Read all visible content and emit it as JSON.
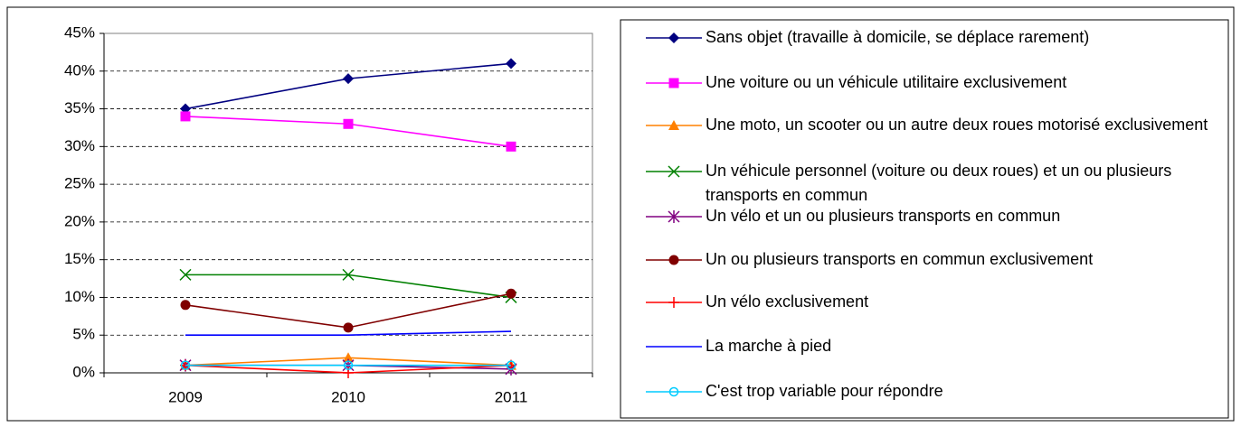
{
  "chart_data": {
    "type": "line",
    "categories": [
      "2009",
      "2010",
      "2011"
    ],
    "ylim": [
      0,
      45
    ],
    "yticks": [
      {
        "value": 0,
        "label": "0%"
      },
      {
        "value": 5,
        "label": "5%"
      },
      {
        "value": 10,
        "label": "10%"
      },
      {
        "value": 15,
        "label": "15%"
      },
      {
        "value": 20,
        "label": "20%"
      },
      {
        "value": 25,
        "label": "25%"
      },
      {
        "value": 30,
        "label": "30%"
      },
      {
        "value": 35,
        "label": "35%"
      },
      {
        "value": 40,
        "label": "40%"
      },
      {
        "value": 45,
        "label": "45%"
      }
    ],
    "grid": true,
    "legend": "right",
    "series": [
      {
        "name": "Sans objet (travaille à domicile, se déplace rarement)",
        "color": "#000080",
        "marker": "diamond",
        "values": [
          35,
          39,
          41
        ]
      },
      {
        "name": "Une voiture ou un véhicule utilitaire exclusivement",
        "color": "#ff00ff",
        "marker": "square",
        "values": [
          34,
          33,
          30
        ]
      },
      {
        "name": "Une moto, un scooter ou un autre deux roues motorisé exclusivement",
        "color": "#ff8000",
        "marker": "triangle",
        "values": [
          1,
          2,
          1
        ]
      },
      {
        "name": "Un véhicule personnel (voiture ou deux roues) et  un ou plusieurs transports en commun",
        "color": "#008000",
        "marker": "x",
        "values": [
          13,
          13,
          10
        ]
      },
      {
        "name": "Un vélo et un ou plusieurs transports en commun",
        "color": "#800080",
        "marker": "star",
        "values": [
          1,
          1,
          0.5
        ]
      },
      {
        "name": "Un ou plusieurs transports en commun exclusivement",
        "color": "#800000",
        "marker": "circle",
        "values": [
          9,
          6,
          10.5
        ]
      },
      {
        "name": "Un vélo exclusivement",
        "color": "#ff0000",
        "marker": "plus",
        "values": [
          1,
          0,
          1
        ]
      },
      {
        "name": "La marche à pied",
        "color": "#0000ff",
        "marker": "none",
        "values": [
          5,
          5,
          5.5
        ]
      },
      {
        "name": "C'est trop variable pour répondre",
        "color": "#00ccff",
        "marker": "open-circle",
        "values": [
          1,
          1,
          1
        ]
      }
    ]
  }
}
